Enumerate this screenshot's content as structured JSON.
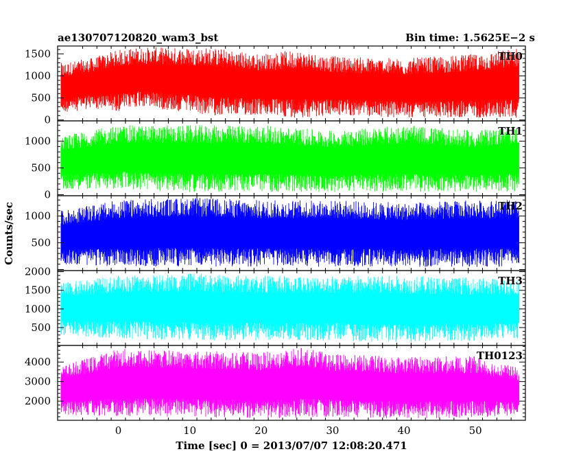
{
  "header": {
    "title": "ae130707120820_wam3_bst",
    "bin_time": "Bin time: 1.5625E−2 s"
  },
  "chart_data": {
    "type": "line",
    "xlabel": "Time [sec] 0 = 2013/07/07 12:08:20.471",
    "ylabel": "Counts/sec",
    "xlim": [
      -8.5,
      57.0
    ],
    "x_ticks": [
      0,
      10,
      20,
      30,
      40,
      50
    ],
    "x_tick_labels": [
      "0",
      "10",
      "20",
      "30",
      "40",
      "50"
    ],
    "data_x_range": [
      -8.0,
      56.0
    ],
    "panels": [
      {
        "name": "TH0",
        "color": "#ff0000",
        "ylim": [
          -20,
          1680
        ],
        "y_ticks": [
          0,
          500,
          1000,
          1500
        ],
        "y_tick_labels": [
          "0",
          "500",
          "1000",
          "1500"
        ],
        "envelope": [
          {
            "t": -8,
            "min": 150,
            "max": 1300
          },
          {
            "t": -4,
            "min": 250,
            "max": 1400
          },
          {
            "t": 0,
            "min": 200,
            "max": 1600
          },
          {
            "t": 3,
            "min": 300,
            "max": 1650
          },
          {
            "t": 10,
            "min": 150,
            "max": 1650
          },
          {
            "t": 13,
            "min": 100,
            "max": 1650
          },
          {
            "t": 20,
            "min": 100,
            "max": 1500
          },
          {
            "t": 25,
            "min": 50,
            "max": 1600
          },
          {
            "t": 30,
            "min": 100,
            "max": 1450
          },
          {
            "t": 40,
            "min": 50,
            "max": 1400
          },
          {
            "t": 50,
            "min": 50,
            "max": 1500
          },
          {
            "t": 56,
            "min": 50,
            "max": 1650
          }
        ]
      },
      {
        "name": "TH1",
        "color": "#00ff00",
        "ylim": [
          -20,
          1380
        ],
        "y_ticks": [
          0,
          500,
          1000
        ],
        "y_tick_labels": [
          "0",
          "500",
          "1000"
        ],
        "envelope": [
          {
            "t": -8,
            "min": 100,
            "max": 1100
          },
          {
            "t": 0,
            "min": 100,
            "max": 1300
          },
          {
            "t": 10,
            "min": 50,
            "max": 1300
          },
          {
            "t": 20,
            "min": 50,
            "max": 1300
          },
          {
            "t": 25,
            "min": 50,
            "max": 1250
          },
          {
            "t": 30,
            "min": 50,
            "max": 1200
          },
          {
            "t": 40,
            "min": 50,
            "max": 1300
          },
          {
            "t": 50,
            "min": 50,
            "max": 1200
          },
          {
            "t": 56,
            "min": 50,
            "max": 1300
          }
        ]
      },
      {
        "name": "TH2",
        "color": "#0000ff",
        "ylim": [
          -20,
          1380
        ],
        "y_ticks": [
          500,
          1000
        ],
        "y_tick_labels": [
          "500",
          "1000"
        ],
        "envelope": [
          {
            "t": -8,
            "min": 100,
            "max": 1100
          },
          {
            "t": 0,
            "min": 50,
            "max": 1300
          },
          {
            "t": 10,
            "min": 50,
            "max": 1350
          },
          {
            "t": 20,
            "min": 50,
            "max": 1300
          },
          {
            "t": 30,
            "min": 50,
            "max": 1300
          },
          {
            "t": 40,
            "min": 50,
            "max": 1250
          },
          {
            "t": 50,
            "min": 50,
            "max": 1300
          },
          {
            "t": 56,
            "min": 50,
            "max": 1300
          }
        ]
      },
      {
        "name": "TH3",
        "color": "#00ffff",
        "ylim": [
          20,
          2030
        ],
        "y_ticks": [
          500,
          1000,
          1500,
          2000
        ],
        "y_tick_labels": [
          "500",
          "1000",
          "1500",
          "2000"
        ],
        "envelope": [
          {
            "t": -8,
            "min": 300,
            "max": 1700
          },
          {
            "t": 0,
            "min": 200,
            "max": 1900
          },
          {
            "t": 10,
            "min": 150,
            "max": 1950
          },
          {
            "t": 20,
            "min": 150,
            "max": 1900
          },
          {
            "t": 30,
            "min": 150,
            "max": 1900
          },
          {
            "t": 40,
            "min": 100,
            "max": 1900
          },
          {
            "t": 50,
            "min": 150,
            "max": 1850
          },
          {
            "t": 56,
            "min": 200,
            "max": 1800
          }
        ]
      },
      {
        "name": "TH0123",
        "color": "#ff00ff",
        "ylim": [
          1020,
          4850
        ],
        "y_ticks": [
          2000,
          3000,
          4000
        ],
        "y_tick_labels": [
          "2000",
          "3000",
          "4000"
        ],
        "envelope": [
          {
            "t": -8,
            "min": 1300,
            "max": 3800
          },
          {
            "t": 0,
            "min": 1200,
            "max": 4700
          },
          {
            "t": 10,
            "min": 1200,
            "max": 4600
          },
          {
            "t": 20,
            "min": 1100,
            "max": 4500
          },
          {
            "t": 26,
            "min": 1150,
            "max": 4750
          },
          {
            "t": 30,
            "min": 1200,
            "max": 4400
          },
          {
            "t": 40,
            "min": 1100,
            "max": 4300
          },
          {
            "t": 50,
            "min": 1150,
            "max": 4300
          },
          {
            "t": 56,
            "min": 1300,
            "max": 3700
          }
        ]
      }
    ],
    "grid": false,
    "legend": "none"
  }
}
